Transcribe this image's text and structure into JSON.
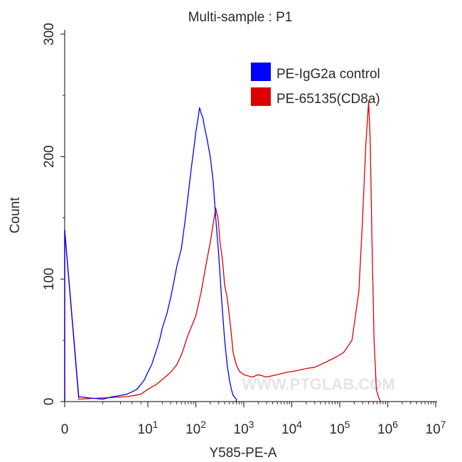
{
  "chart_data": {
    "type": "area",
    "title": "Multi-sample : P1",
    "xlabel": "Y585-PE-A",
    "ylabel": "Count",
    "x_scale": "biexponential",
    "ylim": [
      0,
      300
    ],
    "y_ticks": [
      "0",
      "100",
      "200",
      "300"
    ],
    "x_ticks": [
      {
        "value": 0,
        "label": "0",
        "exp": ""
      },
      {
        "value": 10,
        "label": "10",
        "exp": "1"
      },
      {
        "value": 100,
        "label": "10",
        "exp": "2"
      },
      {
        "value": 1000,
        "label": "10",
        "exp": "3"
      },
      {
        "value": 10000,
        "label": "10",
        "exp": "4"
      },
      {
        "value": 100000,
        "label": "10",
        "exp": "5"
      },
      {
        "value": 1000000,
        "label": "10",
        "exp": "6"
      },
      {
        "value": 10000000,
        "label": "10",
        "exp": "7"
      }
    ],
    "legend_position": "top-right",
    "watermark": "WWW.PTGLAB.COM",
    "series": [
      {
        "name": "PE-IgG2a control",
        "color": "#0000ff",
        "points": [
          [
            0,
            140
          ],
          [
            0.5,
            4
          ],
          [
            1,
            3
          ],
          [
            2,
            2
          ],
          [
            3,
            4
          ],
          [
            4,
            5
          ],
          [
            5,
            6
          ],
          [
            6,
            8
          ],
          [
            7,
            10
          ],
          [
            8,
            14
          ],
          [
            9,
            18
          ],
          [
            10,
            24
          ],
          [
            12,
            30
          ],
          [
            14,
            38
          ],
          [
            16,
            45
          ],
          [
            18,
            52
          ],
          [
            20,
            60
          ],
          [
            25,
            72
          ],
          [
            30,
            85
          ],
          [
            35,
            98
          ],
          [
            40,
            110
          ],
          [
            50,
            125
          ],
          [
            60,
            148
          ],
          [
            70,
            170
          ],
          [
            80,
            190
          ],
          [
            90,
            205
          ],
          [
            100,
            220
          ],
          [
            110,
            230
          ],
          [
            120,
            240
          ],
          [
            130,
            235
          ],
          [
            140,
            232
          ],
          [
            150,
            225
          ],
          [
            170,
            215
          ],
          [
            200,
            200
          ],
          [
            230,
            180
          ],
          [
            260,
            150
          ],
          [
            300,
            120
          ],
          [
            350,
            80
          ],
          [
            400,
            50
          ],
          [
            450,
            30
          ],
          [
            500,
            18
          ],
          [
            550,
            10
          ],
          [
            600,
            5
          ],
          [
            700,
            2
          ]
        ]
      },
      {
        "name": "PE-65135(CD8a)",
        "color": "#dd0000",
        "points": [
          [
            0,
            140
          ],
          [
            0.5,
            2
          ],
          [
            2,
            3
          ],
          [
            5,
            4
          ],
          [
            8,
            6
          ],
          [
            10,
            10
          ],
          [
            15,
            14
          ],
          [
            20,
            18
          ],
          [
            30,
            24
          ],
          [
            40,
            30
          ],
          [
            50,
            38
          ],
          [
            70,
            55
          ],
          [
            100,
            70
          ],
          [
            130,
            90
          ],
          [
            160,
            110
          ],
          [
            200,
            130
          ],
          [
            230,
            145
          ],
          [
            260,
            158
          ],
          [
            290,
            150
          ],
          [
            320,
            130
          ],
          [
            360,
            115
          ],
          [
            400,
            95
          ],
          [
            450,
            85
          ],
          [
            500,
            70
          ],
          [
            550,
            55
          ],
          [
            600,
            40
          ],
          [
            700,
            30
          ],
          [
            800,
            25
          ],
          [
            1000,
            22
          ],
          [
            1500,
            20
          ],
          [
            2000,
            22
          ],
          [
            3000,
            20
          ],
          [
            5000,
            22
          ],
          [
            8000,
            24
          ],
          [
            12000,
            25
          ],
          [
            20000,
            27
          ],
          [
            30000,
            28
          ],
          [
            50000,
            32
          ],
          [
            80000,
            36
          ],
          [
            120000,
            40
          ],
          [
            180000,
            50
          ],
          [
            250000,
            90
          ],
          [
            300000,
            150
          ],
          [
            350000,
            210
          ],
          [
            400000,
            245
          ],
          [
            430000,
            215
          ],
          [
            470000,
            130
          ],
          [
            520000,
            50
          ],
          [
            580000,
            10
          ],
          [
            650000,
            3
          ],
          [
            700000,
            1
          ]
        ]
      }
    ]
  }
}
